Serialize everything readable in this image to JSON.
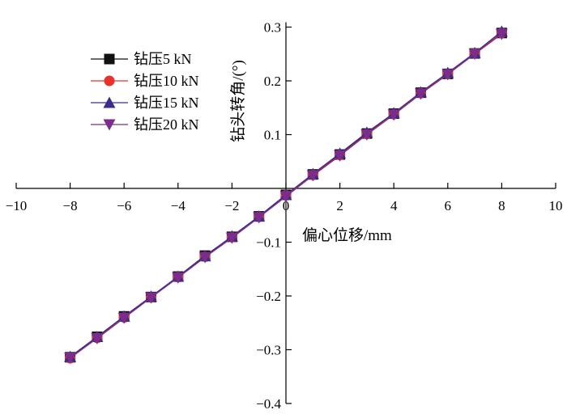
{
  "chart_data": {
    "type": "line",
    "title": "",
    "xlabel": "偏心位移/mm",
    "ylabel": "钻头转角/(°)",
    "xlim": [
      -10,
      10
    ],
    "ylim": [
      -0.4,
      0.3
    ],
    "x_ticks": [
      -10,
      -8,
      -6,
      -4,
      -2,
      0,
      2,
      4,
      6,
      8,
      10
    ],
    "x_tick_labels": [
      "−10",
      "−8",
      "−6",
      "−4",
      "−2",
      "0",
      "2",
      "4",
      "6",
      "8",
      "10"
    ],
    "y_ticks": [
      -0.4,
      -0.3,
      -0.2,
      -0.1,
      0.1,
      0.2,
      0.3
    ],
    "y_tick_labels": [
      "−0.4",
      "−0.3",
      "−0.2",
      "−0.1",
      "0.1",
      "0.2",
      "0.3"
    ],
    "grid": false,
    "legend_position": "top-left",
    "x": [
      -8,
      -7,
      -6,
      -5,
      -4,
      -3,
      -2,
      -1,
      0,
      1,
      2,
      3,
      4,
      5,
      6,
      7,
      8
    ],
    "series": [
      {
        "name": "钻压5 kN",
        "marker": "square",
        "color": "#111111",
        "values": [
          -0.314,
          -0.276,
          -0.238,
          -0.202,
          -0.164,
          -0.125,
          -0.09,
          -0.052,
          -0.012,
          0.026,
          0.063,
          0.102,
          0.139,
          0.178,
          0.213,
          0.251,
          0.289
        ]
      },
      {
        "name": "钻压10 kN",
        "marker": "circle",
        "color": "#e8332a",
        "values": [
          -0.316,
          -0.278,
          -0.24,
          -0.203,
          -0.165,
          -0.127,
          -0.091,
          -0.053,
          -0.013,
          0.025,
          0.062,
          0.101,
          0.138,
          0.177,
          0.213,
          0.251,
          0.289
        ]
      },
      {
        "name": "钻压15 kN",
        "marker": "triangle-up",
        "color": "#3a2d8c",
        "values": [
          -0.313,
          -0.276,
          -0.238,
          -0.201,
          -0.164,
          -0.126,
          -0.089,
          -0.052,
          -0.012,
          0.027,
          0.065,
          0.104,
          0.14,
          0.179,
          0.215,
          0.252,
          0.292
        ]
      },
      {
        "name": "钻压20 kN",
        "marker": "triangle-down",
        "color": "#7b2c8c",
        "values": [
          -0.315,
          -0.279,
          -0.241,
          -0.203,
          -0.166,
          -0.128,
          -0.092,
          -0.054,
          -0.015,
          0.024,
          0.061,
          0.1,
          0.137,
          0.176,
          0.212,
          0.25,
          0.287
        ]
      }
    ]
  }
}
